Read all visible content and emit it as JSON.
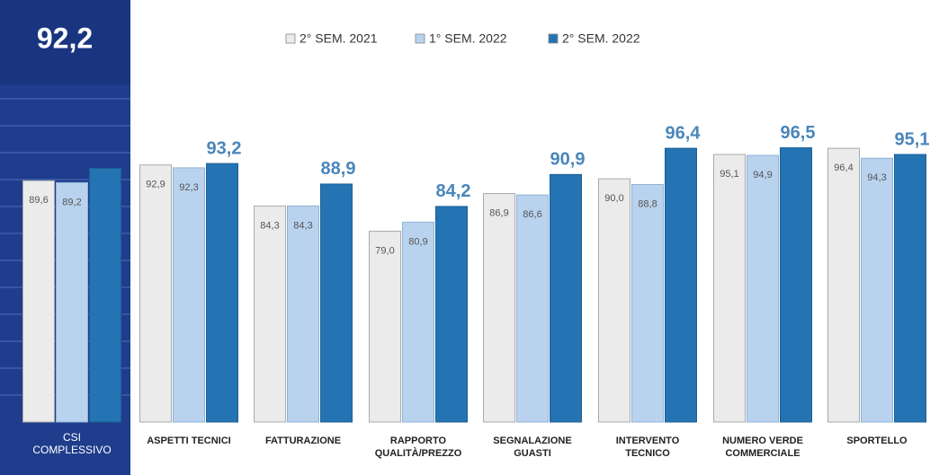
{
  "chart_data": {
    "type": "bar",
    "categories": [
      "CSI COMPLESSIVO",
      "ASPETTI TECNICI",
      "FATTURAZIONE",
      "RAPPORTO QUALITÀ/PREZZO",
      "SEGNALAZIONE GUASTI",
      "INTERVENTO TECNICO",
      "NUMERO VERDE COMMERCIALE",
      "SPORTELLO"
    ],
    "series": [
      {
        "name": "2° SEM. 2021",
        "color": "#ebebeb",
        "values": [
          89.6,
          92.9,
          84.3,
          79.0,
          86.9,
          90.0,
          95.1,
          96.4
        ],
        "value_labels": [
          "89,6",
          "92,9",
          "84,3",
          "79,0",
          "86,9",
          "90,0",
          "95,1",
          "96,4"
        ]
      },
      {
        "name": "1° SEM. 2022",
        "color": "#b9d3ee",
        "values": [
          89.2,
          92.3,
          84.3,
          80.9,
          86.6,
          88.8,
          94.9,
          94.3
        ],
        "value_labels": [
          "89,2",
          "92,3",
          "84,3",
          "80,9",
          "86,6",
          "88,8",
          "94,9",
          "94,3"
        ]
      },
      {
        "name": "2° SEM. 2022",
        "color": "#2474b3",
        "values": [
          92.2,
          93.2,
          88.9,
          84.2,
          90.9,
          96.4,
          96.5,
          95.1
        ],
        "value_labels": [
          "92,2",
          "93,2",
          "88,9",
          "84,2",
          "90,9",
          "96,4",
          "96,5",
          "95,1"
        ]
      }
    ],
    "ylim": [
      39,
      100
    ],
    "legend": "top"
  }
}
